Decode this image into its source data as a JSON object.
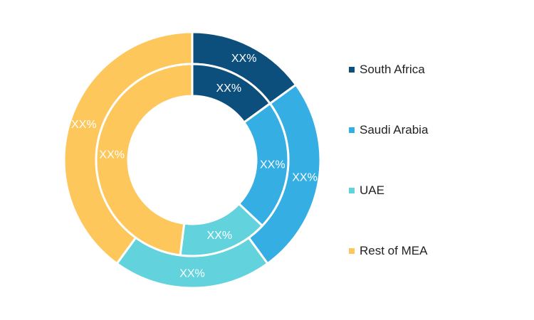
{
  "chart_data": {
    "type": "pie",
    "subtype": "double-donut",
    "categories": [
      "South Africa",
      "Saudi Arabia",
      "UAE",
      "Rest of MEA"
    ],
    "colors": [
      "#0d4f7c",
      "#35aee4",
      "#62d3dc",
      "#fdc75c"
    ],
    "series": [
      {
        "ring": "outer",
        "values": [
          15,
          25,
          20,
          40
        ],
        "labels": [
          "XX%",
          "XX%",
          "XX%",
          "XX%"
        ]
      },
      {
        "ring": "inner",
        "values": [
          15,
          22,
          15,
          48
        ],
        "labels": [
          "XX%",
          "XX%",
          "XX%",
          "XX%"
        ]
      }
    ],
    "legend_position": "right",
    "title": "",
    "start_angle_deg": 0,
    "direction": "clockwise"
  }
}
